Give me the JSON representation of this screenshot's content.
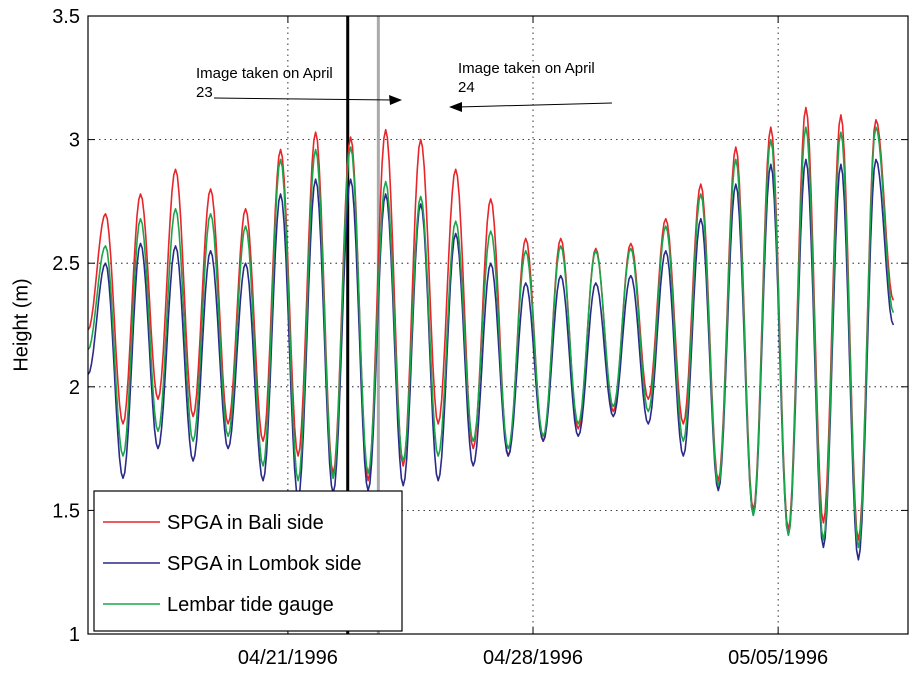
{
  "chart_data": {
    "type": "line",
    "title": "",
    "xlabel": "",
    "ylabel": "Height (m)",
    "xlim": [
      "04/15/1996 07:00",
      "05/08/1996 17:00"
    ],
    "ylim": [
      1,
      3.5
    ],
    "yticks": [
      1,
      1.5,
      2,
      2.5,
      3,
      3.5
    ],
    "ytick_labels": [
      "1",
      "1.5",
      "2",
      "2.5",
      "3",
      "3.5"
    ],
    "xticks": [
      "04/21/1996",
      "04/28/1996",
      "05/05/1996"
    ],
    "grid": true,
    "legend_position": "bottom-left",
    "series": [
      {
        "name": "SPGA in Bali side",
        "color": "#e8252a",
        "x": [
          "04/15/1996 07:00",
          "04/15/1996 19:00",
          "04/16/1996 07:00",
          "04/16/1996 19:00",
          "04/17/1996 07:00",
          "04/17/1996 19:00",
          "04/18/1996 07:00",
          "04/18/1996 19:00",
          "04/19/1996 07:00",
          "04/19/1996 19:00",
          "04/20/1996 07:00",
          "04/20/1996 19:00",
          "04/21/1996 07:00",
          "04/21/1996 19:00",
          "04/22/1996 07:00",
          "04/22/1996 19:00",
          "04/23/1996 07:00",
          "04/23/1996 19:00",
          "04/24/1996 07:00",
          "04/24/1996 19:00",
          "04/25/1996 07:00",
          "04/25/1996 19:00",
          "04/26/1996 07:00",
          "04/26/1996 19:00",
          "04/27/1996 07:00",
          "04/27/1996 19:00",
          "04/28/1996 07:00",
          "04/28/1996 19:00",
          "04/29/1996 07:00",
          "04/29/1996 19:00",
          "04/30/1996 07:00",
          "04/30/1996 19:00",
          "05/01/1996 07:00",
          "05/01/1996 19:00",
          "05/02/1996 07:00",
          "05/02/1996 19:00",
          "05/03/1996 07:00",
          "05/03/1996 19:00",
          "05/04/1996 07:00",
          "05/04/1996 19:00",
          "05/05/1996 07:00",
          "05/05/1996 19:00",
          "05/06/1996 07:00",
          "05/06/1996 19:00",
          "05/07/1996 07:00",
          "05/07/1996 19:00",
          "05/08/1996 07:00"
        ],
        "values": [
          2.23,
          2.7,
          1.85,
          2.78,
          1.95,
          2.88,
          1.88,
          2.8,
          1.85,
          2.72,
          1.78,
          2.96,
          1.72,
          3.03,
          1.65,
          3.01,
          1.62,
          3.04,
          1.68,
          3.0,
          1.85,
          2.88,
          1.75,
          2.76,
          1.72,
          2.6,
          1.78,
          2.6,
          1.83,
          2.56,
          1.9,
          2.58,
          1.95,
          2.68,
          1.85,
          2.82,
          1.62,
          2.97,
          1.5,
          3.05,
          1.42,
          3.13,
          1.45,
          3.1,
          1.38,
          3.08,
          2.35
        ]
      },
      {
        "name": "SPGA in Lombok side",
        "color": "#2a2a8a",
        "x": [
          "04/15/1996 07:00",
          "04/15/1996 19:00",
          "04/16/1996 07:00",
          "04/16/1996 19:00",
          "04/17/1996 07:00",
          "04/17/1996 19:00",
          "04/18/1996 07:00",
          "04/18/1996 19:00",
          "04/19/1996 07:00",
          "04/19/1996 19:00",
          "04/20/1996 07:00",
          "04/20/1996 19:00",
          "04/21/1996 07:00",
          "04/21/1996 19:00",
          "04/22/1996 07:00",
          "04/22/1996 19:00",
          "04/23/1996 07:00",
          "04/23/1996 19:00",
          "04/24/1996 07:00",
          "04/24/1996 19:00",
          "04/25/1996 07:00",
          "04/25/1996 19:00",
          "04/26/1996 07:00",
          "04/26/1996 19:00",
          "04/27/1996 07:00",
          "04/27/1996 19:00",
          "04/28/1996 07:00",
          "04/28/1996 19:00",
          "04/29/1996 07:00",
          "04/29/1996 19:00",
          "04/30/1996 07:00",
          "04/30/1996 19:00",
          "05/01/1996 07:00",
          "05/01/1996 19:00",
          "05/02/1996 07:00",
          "05/02/1996 19:00",
          "05/03/1996 07:00",
          "05/03/1996 19:00",
          "05/04/1996 07:00",
          "05/04/1996 19:00",
          "05/05/1996 07:00",
          "05/05/1996 19:00",
          "05/06/1996 07:00",
          "05/06/1996 19:00",
          "05/07/1996 07:00",
          "05/07/1996 19:00",
          "05/08/1996 07:00"
        ],
        "values": [
          2.05,
          2.5,
          1.63,
          2.58,
          1.75,
          2.57,
          1.7,
          2.55,
          1.75,
          2.5,
          1.62,
          2.78,
          1.55,
          2.84,
          1.57,
          2.84,
          1.58,
          2.78,
          1.6,
          2.74,
          1.62,
          2.62,
          1.68,
          2.5,
          1.72,
          2.42,
          1.78,
          2.45,
          1.8,
          2.42,
          1.88,
          2.45,
          1.85,
          2.55,
          1.72,
          2.68,
          1.58,
          2.82,
          1.48,
          2.9,
          1.4,
          2.92,
          1.35,
          2.9,
          1.3,
          2.92,
          2.25
        ]
      },
      {
        "name": "Lembar tide gauge",
        "color": "#1aa64a",
        "x": [
          "04/15/1996 07:00",
          "04/15/1996 19:00",
          "04/16/1996 07:00",
          "04/16/1996 19:00",
          "04/17/1996 07:00",
          "04/17/1996 19:00",
          "04/18/1996 07:00",
          "04/18/1996 19:00",
          "04/19/1996 07:00",
          "04/19/1996 19:00",
          "04/20/1996 07:00",
          "04/20/1996 19:00",
          "04/21/1996 07:00",
          "04/21/1996 19:00",
          "04/22/1996 07:00",
          "04/22/1996 19:00",
          "04/23/1996 07:00",
          "04/23/1996 19:00",
          "04/24/1996 07:00",
          "04/24/1996 19:00",
          "04/25/1996 07:00",
          "04/25/1996 19:00",
          "04/26/1996 07:00",
          "04/26/1996 19:00",
          "04/27/1996 07:00",
          "04/27/1996 19:00",
          "04/28/1996 07:00",
          "04/28/1996 19:00",
          "04/29/1996 07:00",
          "04/29/1996 19:00",
          "04/30/1996 07:00",
          "04/30/1996 19:00",
          "05/01/1996 07:00",
          "05/01/1996 19:00",
          "05/02/1996 07:00",
          "05/02/1996 19:00",
          "05/03/1996 07:00",
          "05/03/1996 19:00",
          "05/04/1996 07:00",
          "05/04/1996 19:00",
          "05/05/1996 07:00",
          "05/05/1996 19:00",
          "05/06/1996 07:00",
          "05/06/1996 19:00",
          "05/07/1996 07:00",
          "05/07/1996 19:00",
          "05/08/1996 07:00"
        ],
        "values": [
          2.15,
          2.57,
          1.72,
          2.68,
          1.82,
          2.72,
          1.78,
          2.7,
          1.8,
          2.65,
          1.68,
          2.92,
          1.62,
          2.96,
          1.63,
          2.97,
          1.65,
          2.83,
          1.7,
          2.77,
          1.72,
          2.67,
          1.78,
          2.63,
          1.75,
          2.55,
          1.8,
          2.57,
          1.85,
          2.55,
          1.92,
          2.56,
          1.9,
          2.65,
          1.78,
          2.78,
          1.6,
          2.92,
          1.48,
          3.0,
          1.4,
          3.05,
          1.38,
          3.03,
          1.35,
          3.05,
          2.3
        ]
      }
    ],
    "vertical_lines": [
      {
        "date": "04/22/1996 17:00",
        "color": "#000000"
      },
      {
        "date": "04/23/1996 14:00",
        "color": "#aaaaaa"
      }
    ],
    "annotations": [
      {
        "lines": [
          "Image taken on April",
          "23"
        ],
        "arrow_direction": "right"
      },
      {
        "lines": [
          "Image taken on April",
          "24"
        ],
        "arrow_direction": "left"
      }
    ]
  }
}
